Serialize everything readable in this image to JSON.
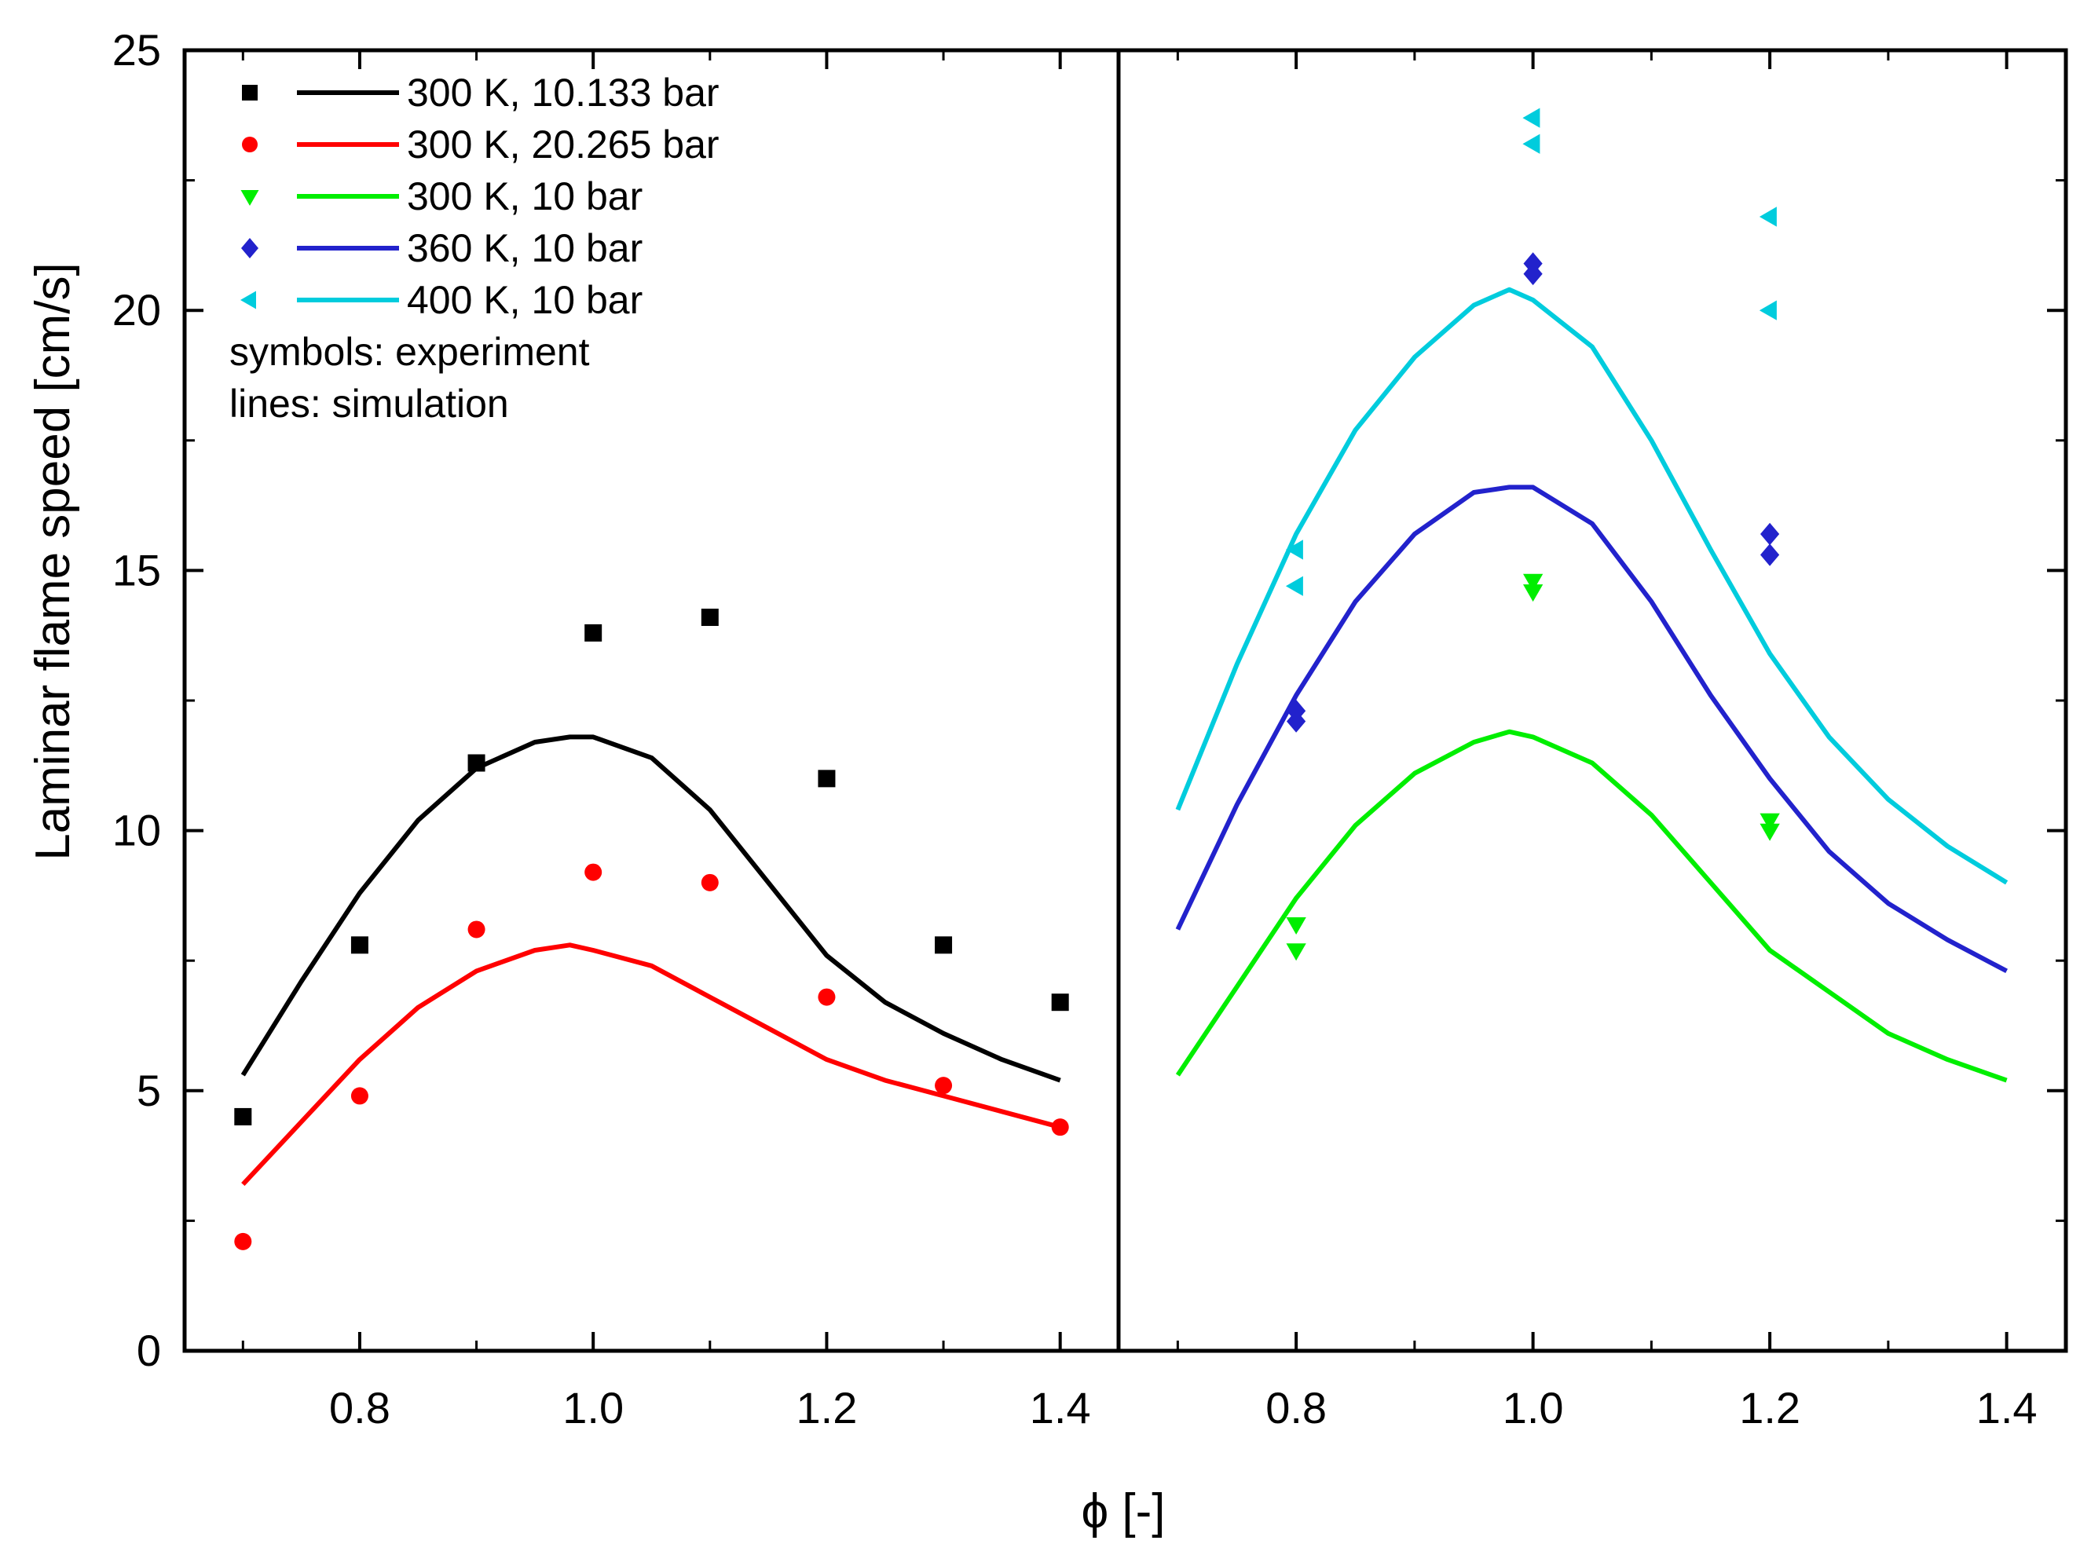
{
  "chart_data": {
    "type": "scatter",
    "ylabel": "Laminar flame speed [cm/s]",
    "xlabel": "ϕ [-]",
    "ylim": [
      0,
      25
    ],
    "yticks": [
      "0",
      "5",
      "10",
      "15",
      "20",
      "25"
    ],
    "annotations": [
      "symbols: experiment",
      "lines: simulation"
    ],
    "panels": [
      {
        "name": "left",
        "xlim": [
          0.65,
          1.45
        ],
        "xticks": [
          "0.8",
          "1.0",
          "1.2",
          "1.4"
        ],
        "series": [
          {
            "name": "300 K, 10.133 bar",
            "color": "#000000",
            "marker": "square",
            "experiment": [
              [
                0.7,
                4.5
              ],
              [
                0.8,
                7.8
              ],
              [
                0.9,
                11.3
              ],
              [
                1.0,
                13.8
              ],
              [
                1.1,
                14.1
              ],
              [
                1.2,
                11.0
              ],
              [
                1.3,
                7.8
              ],
              [
                1.4,
                6.7
              ]
            ],
            "simulation": [
              [
                0.7,
                5.3
              ],
              [
                0.75,
                7.1
              ],
              [
                0.8,
                8.8
              ],
              [
                0.85,
                10.2
              ],
              [
                0.9,
                11.2
              ],
              [
                0.95,
                11.7
              ],
              [
                0.98,
                11.8
              ],
              [
                1.0,
                11.8
              ],
              [
                1.05,
                11.4
              ],
              [
                1.1,
                10.4
              ],
              [
                1.15,
                9.0
              ],
              [
                1.2,
                7.6
              ],
              [
                1.25,
                6.7
              ],
              [
                1.3,
                6.1
              ],
              [
                1.35,
                5.6
              ],
              [
                1.4,
                5.2
              ]
            ]
          },
          {
            "name": "300 K, 20.265 bar",
            "color": "#ff0000",
            "marker": "circle",
            "experiment": [
              [
                0.7,
                2.1
              ],
              [
                0.8,
                4.9
              ],
              [
                0.9,
                8.1
              ],
              [
                1.0,
                9.2
              ],
              [
                1.1,
                9.0
              ],
              [
                1.2,
                6.8
              ],
              [
                1.3,
                5.1
              ],
              [
                1.4,
                4.3
              ]
            ],
            "simulation": [
              [
                0.7,
                3.2
              ],
              [
                0.75,
                4.4
              ],
              [
                0.8,
                5.6
              ],
              [
                0.85,
                6.6
              ],
              [
                0.9,
                7.3
              ],
              [
                0.95,
                7.7
              ],
              [
                0.98,
                7.8
              ],
              [
                1.0,
                7.7
              ],
              [
                1.05,
                7.4
              ],
              [
                1.1,
                6.8
              ],
              [
                1.15,
                6.2
              ],
              [
                1.2,
                5.6
              ],
              [
                1.25,
                5.2
              ],
              [
                1.3,
                4.9
              ],
              [
                1.35,
                4.6
              ],
              [
                1.4,
                4.3
              ]
            ]
          }
        ]
      },
      {
        "name": "right",
        "xlim": [
          0.65,
          1.45
        ],
        "xticks": [
          "0.8",
          "1.0",
          "1.2",
          "1.4"
        ],
        "series": [
          {
            "name": "300 K, 10 bar",
            "color": "#00ee00",
            "marker": "triangle-down",
            "experiment": [
              [
                0.8,
                7.7
              ],
              [
                0.8,
                8.2
              ],
              [
                1.0,
                14.6
              ],
              [
                1.0,
                14.8
              ],
              [
                1.2,
                10.0
              ],
              [
                1.2,
                10.2
              ]
            ],
            "simulation": [
              [
                0.7,
                5.3
              ],
              [
                0.75,
                7.0
              ],
              [
                0.8,
                8.7
              ],
              [
                0.85,
                10.1
              ],
              [
                0.9,
                11.1
              ],
              [
                0.95,
                11.7
              ],
              [
                0.98,
                11.9
              ],
              [
                1.0,
                11.8
              ],
              [
                1.05,
                11.3
              ],
              [
                1.1,
                10.3
              ],
              [
                1.15,
                9.0
              ],
              [
                1.2,
                7.7
              ],
              [
                1.25,
                6.9
              ],
              [
                1.3,
                6.1
              ],
              [
                1.35,
                5.6
              ],
              [
                1.4,
                5.2
              ]
            ]
          },
          {
            "name": "360 K, 10 bar",
            "color": "#2222cc",
            "marker": "diamond",
            "experiment": [
              [
                0.8,
                12.1
              ],
              [
                0.8,
                12.3
              ],
              [
                1.0,
                20.7
              ],
              [
                1.0,
                20.9
              ],
              [
                1.2,
                15.3
              ],
              [
                1.2,
                15.7
              ]
            ],
            "simulation": [
              [
                0.7,
                8.1
              ],
              [
                0.75,
                10.5
              ],
              [
                0.8,
                12.6
              ],
              [
                0.85,
                14.4
              ],
              [
                0.9,
                15.7
              ],
              [
                0.95,
                16.5
              ],
              [
                0.98,
                16.6
              ],
              [
                1.0,
                16.6
              ],
              [
                1.05,
                15.9
              ],
              [
                1.1,
                14.4
              ],
              [
                1.15,
                12.6
              ],
              [
                1.2,
                11.0
              ],
              [
                1.25,
                9.6
              ],
              [
                1.3,
                8.6
              ],
              [
                1.35,
                7.9
              ],
              [
                1.4,
                7.3
              ]
            ]
          },
          {
            "name": "400 K, 10 bar",
            "color": "#00ccdd",
            "marker": "triangle-left",
            "experiment": [
              [
                0.8,
                14.7
              ],
              [
                0.8,
                15.4
              ],
              [
                1.0,
                23.2
              ],
              [
                1.0,
                23.7
              ],
              [
                1.2,
                20.0
              ],
              [
                1.2,
                21.8
              ]
            ],
            "simulation": [
              [
                0.7,
                10.4
              ],
              [
                0.75,
                13.2
              ],
              [
                0.8,
                15.7
              ],
              [
                0.85,
                17.7
              ],
              [
                0.9,
                19.1
              ],
              [
                0.95,
                20.1
              ],
              [
                0.98,
                20.4
              ],
              [
                1.0,
                20.2
              ],
              [
                1.05,
                19.3
              ],
              [
                1.1,
                17.5
              ],
              [
                1.15,
                15.4
              ],
              [
                1.2,
                13.4
              ],
              [
                1.25,
                11.8
              ],
              [
                1.3,
                10.6
              ],
              [
                1.35,
                9.7
              ],
              [
                1.4,
                9.0
              ]
            ]
          }
        ]
      }
    ]
  }
}
